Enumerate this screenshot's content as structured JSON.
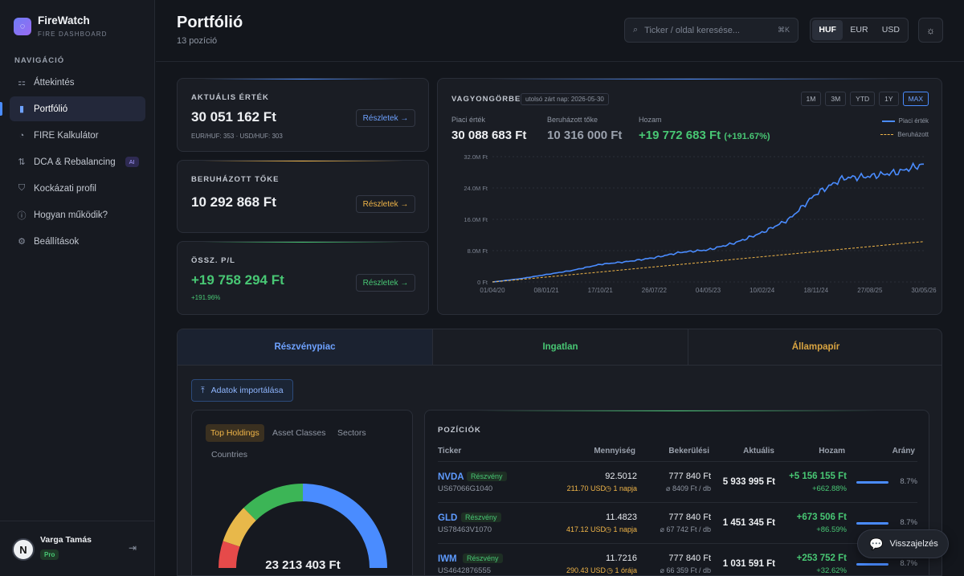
{
  "app": {
    "name": "FireWatch",
    "subtitle": "FIRE DASHBOARD"
  },
  "sidebar": {
    "heading": "NAVIGÁCIÓ",
    "items": [
      {
        "label": "Áttekintés",
        "icon": "grid-icon"
      },
      {
        "label": "Portfólió",
        "icon": "bar-chart-icon",
        "active": true
      },
      {
        "label": "FIRE Kalkulátor",
        "icon": "flame-icon"
      },
      {
        "label": "DCA & Rebalancing",
        "icon": "swap-icon",
        "badge": "AI"
      },
      {
        "label": "Kockázati profil",
        "icon": "shield-icon"
      },
      {
        "label": "Hogyan működik?",
        "icon": "help-icon"
      },
      {
        "label": "Beállítások",
        "icon": "gear-icon"
      }
    ]
  },
  "user": {
    "name": "Varga Tamás",
    "initial": "N",
    "plan": "Pro"
  },
  "header": {
    "title": "Portfólió",
    "subtitle": "13 pozíció",
    "search_placeholder": "Ticker / oldal keresése...",
    "search_shortcut": "⌘K",
    "currencies": [
      "HUF",
      "EUR",
      "USD"
    ],
    "active_currency": "HUF"
  },
  "stats": {
    "current": {
      "label": "AKTUÁLIS ÉRTÉK",
      "value": "30 051 162 Ft",
      "sub": "EUR/HUF: 353 · USD/HUF: 303",
      "details": "Részletek →"
    },
    "invested": {
      "label": "BERUHÁZOTT TŐKE",
      "value": "10 292 868 Ft",
      "details": "Részletek →"
    },
    "pnl": {
      "label": "ÖSSZ. P/L",
      "value": "+19 758 294 Ft",
      "sub": "+191.96%",
      "details": "Részletek →"
    }
  },
  "wealth_chart": {
    "title": "VAGYONGÖRBE",
    "note": "utolsó zárt nap: 2026-05-30",
    "ranges": [
      "1M",
      "3M",
      "YTD",
      "1Y",
      "MAX"
    ],
    "active_range": "MAX",
    "market_label": "Piaci érték",
    "market_value": "30 088 683 Ft",
    "invested_label": "Beruházott tőke",
    "invested_value": "10 316 000 Ft",
    "return_label": "Hozam",
    "return_value": "+19 772 683 Ft",
    "return_pct": "(+191.67%)",
    "legend_market": "Piaci érték",
    "legend_invested": "Beruházott",
    "colors": {
      "market": "#4a8cff",
      "invested": "#f0b548"
    }
  },
  "chart_data": {
    "type": "line",
    "x_ticks": [
      "01/04/20",
      "08/01/21",
      "17/10/21",
      "26/07/22",
      "04/05/23",
      "10/02/24",
      "18/11/24",
      "27/08/25",
      "30/05/26"
    ],
    "y_ticks": [
      "0 Ft",
      "8.0M Ft",
      "16.0M Ft",
      "24.0M Ft",
      "32.0M Ft"
    ],
    "ylim": [
      0,
      32000000
    ],
    "series": [
      {
        "name": "Piaci érték",
        "values": [
          0,
          800000,
          1900000,
          3000000,
          4500000,
          5200000,
          6200000,
          7600000,
          8200000,
          10000000,
          12600000,
          16000000,
          22500000,
          26500000,
          27000000,
          28000000,
          30088683
        ]
      },
      {
        "name": "Beruházott",
        "values": [
          0,
          620000,
          1250000,
          1900000,
          2550000,
          3200000,
          3850000,
          4500000,
          5150000,
          5800000,
          6450000,
          7100000,
          7750000,
          8400000,
          9050000,
          9700000,
          10316000
        ]
      }
    ]
  },
  "tabs": [
    {
      "label": "Részvénypiac",
      "color": "#6ea2ff",
      "active": true
    },
    {
      "label": "Ingatlan",
      "color": "#48c774"
    },
    {
      "label": "Állampapír",
      "color": "#d9a441"
    }
  ],
  "import_label": "Adatok importálása",
  "holdings": {
    "segments": [
      "Top Holdings",
      "Asset Classes",
      "Sectors",
      "Countries"
    ],
    "total": "23 213 403 Ft"
  },
  "positions": {
    "title": "POZÍCIÓK",
    "headers": [
      "Ticker",
      "Mennyiség",
      "Bekerülési",
      "Aktuális",
      "Hozam",
      "Arány"
    ],
    "rows": [
      {
        "ticker": "NVDA",
        "type": "Részvény",
        "isin": "US67066G1040",
        "qty": "92.5012",
        "price": "211.70 USD",
        "age": "◷ 1 napja",
        "cost": "777 840 Ft",
        "avg": "⌀ 8409 Ft / db",
        "current": "5 933 995 Ft",
        "gain": "+5 156 155 Ft",
        "gain_pct": "+662.88%",
        "share": "8.7%"
      },
      {
        "ticker": "GLD",
        "type": "Részvény",
        "isin": "US78463V1070",
        "qty": "11.4823",
        "price": "417.12 USD",
        "age": "◷ 1 napja",
        "cost": "777 840 Ft",
        "avg": "⌀ 67 742 Ft / db",
        "current": "1 451 345 Ft",
        "gain": "+673 506 Ft",
        "gain_pct": "+86.59%",
        "share": "8.7%"
      },
      {
        "ticker": "IWM",
        "type": "Részvény",
        "isin": "US4642876555",
        "qty": "11.7216",
        "price": "290.43 USD",
        "age": "◷ 1 órája",
        "cost": "777 840 Ft",
        "avg": "⌀ 66 359 Ft / db",
        "current": "1 031 591 Ft",
        "gain": "+253 752 Ft",
        "gain_pct": "+32.62%",
        "share": "8.7%"
      }
    ]
  },
  "feedback_label": "Visszajelzés"
}
